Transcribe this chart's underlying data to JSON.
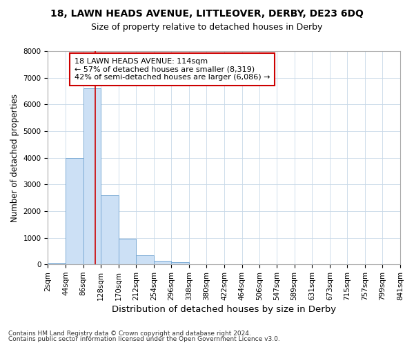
{
  "title1": "18, LAWN HEADS AVENUE, LITTLEOVER, DERBY, DE23 6DQ",
  "title2": "Size of property relative to detached houses in Derby",
  "xlabel": "Distribution of detached houses by size in Derby",
  "ylabel": "Number of detached properties",
  "bin_edges": [
    2,
    44,
    86,
    128,
    170,
    212,
    254,
    296,
    338,
    380,
    422,
    464,
    506,
    547,
    589,
    631,
    673,
    715,
    757,
    799,
    841
  ],
  "bin_labels": [
    "2sqm",
    "44sqm",
    "86sqm",
    "128sqm",
    "170sqm",
    "212sqm",
    "254sqm",
    "296sqm",
    "338sqm",
    "380sqm",
    "422sqm",
    "464sqm",
    "506sqm",
    "547sqm",
    "589sqm",
    "631sqm",
    "673sqm",
    "715sqm",
    "757sqm",
    "799sqm",
    "841sqm"
  ],
  "bar_heights": [
    50,
    4000,
    6600,
    2600,
    950,
    330,
    130,
    80,
    0,
    0,
    0,
    0,
    0,
    0,
    0,
    0,
    0,
    0,
    0,
    0
  ],
  "bar_color": "#cce0f5",
  "bar_edge_color": "#7aaad4",
  "property_sqm": 114,
  "vline_color": "#cc0000",
  "annotation_line1": "18 LAWN HEADS AVENUE: 114sqm",
  "annotation_line2": "← 57% of detached houses are smaller (8,319)",
  "annotation_line3": "42% of semi-detached houses are larger (6,086) →",
  "annotation_box_color": "#cc0000",
  "ylim": [
    0,
    8000
  ],
  "yticks": [
    0,
    1000,
    2000,
    3000,
    4000,
    5000,
    6000,
    7000,
    8000
  ],
  "bg_color": "#ffffff",
  "grid_color": "#c8d8e8",
  "footer1": "Contains HM Land Registry data © Crown copyright and database right 2024.",
  "footer2": "Contains public sector information licensed under the Open Government Licence v3.0.",
  "title1_fontsize": 10,
  "title2_fontsize": 9,
  "xlabel_fontsize": 9.5,
  "ylabel_fontsize": 8.5,
  "tick_fontsize": 7.5,
  "annotation_fontsize": 8,
  "footer_fontsize": 6.5
}
